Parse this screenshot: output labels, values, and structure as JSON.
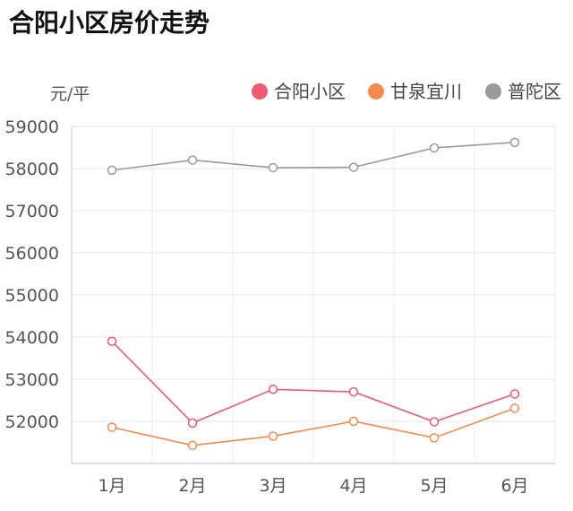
{
  "title": "合阳小区房价走势",
  "chart_data": {
    "type": "line",
    "title": "合阳小区房价走势",
    "y_unit": "元/平",
    "categories": [
      "1月",
      "2月",
      "3月",
      "4月",
      "5月",
      "6月"
    ],
    "ylim": [
      51000,
      59000
    ],
    "y_ticks": [
      59000,
      58000,
      57000,
      56000,
      55000,
      54000,
      53000,
      52000
    ],
    "grid": true,
    "legend_position": "top-right",
    "series": [
      {
        "name": "合阳小区",
        "color": "#f05a6e",
        "values": [
          53900,
          51960,
          52760,
          52700,
          51990,
          52650
        ]
      },
      {
        "name": "甘泉宜川",
        "color": "#f7894f",
        "values": [
          51860,
          51430,
          51650,
          52000,
          51610,
          52310
        ]
      },
      {
        "name": "普陀区",
        "color": "#9b9b9b",
        "values": [
          57960,
          58200,
          58020,
          58030,
          58490,
          58620
        ]
      }
    ]
  }
}
